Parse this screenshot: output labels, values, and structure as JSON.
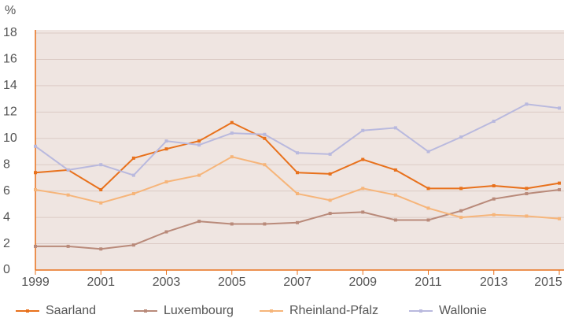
{
  "chart_data": {
    "type": "line",
    "y_label": "%",
    "x": [
      1999,
      2000,
      2001,
      2002,
      2003,
      2004,
      2005,
      2006,
      2007,
      2008,
      2009,
      2010,
      2011,
      2012,
      2013,
      2014,
      2015
    ],
    "xlim": [
      1999,
      2015
    ],
    "xticks": [
      1999,
      2001,
      2003,
      2005,
      2007,
      2009,
      2011,
      2013,
      2015
    ],
    "ylim": [
      0,
      18
    ],
    "yticks": [
      0,
      2,
      4,
      6,
      8,
      10,
      12,
      14,
      16,
      18
    ],
    "grid": true,
    "legend": "bottom",
    "series": [
      {
        "name": "Saarland",
        "color": "#e8711c",
        "values": [
          7.4,
          7.6,
          6.1,
          8.5,
          9.2,
          9.8,
          11.2,
          10.0,
          7.4,
          7.3,
          8.4,
          7.6,
          6.2,
          6.2,
          6.4,
          6.2,
          6.6
        ]
      },
      {
        "name": "Luxembourg",
        "color": "#b98a7a",
        "values": [
          1.8,
          1.8,
          1.6,
          1.9,
          2.9,
          3.7,
          3.5,
          3.5,
          3.6,
          4.3,
          4.4,
          3.8,
          3.8,
          4.5,
          5.4,
          5.8,
          6.1
        ]
      },
      {
        "name": "Rheinland-Pfalz",
        "color": "#f6b57a",
        "values": [
          6.1,
          5.7,
          5.1,
          5.8,
          6.7,
          7.2,
          8.6,
          8.0,
          5.8,
          5.3,
          6.2,
          5.7,
          4.7,
          4.0,
          4.2,
          4.1,
          3.9
        ]
      },
      {
        "name": "Wallonie",
        "color": "#b9b9de",
        "values": [
          9.4,
          7.6,
          8.0,
          7.2,
          9.8,
          9.5,
          10.4,
          10.3,
          8.9,
          8.8,
          10.6,
          10.8,
          9.0,
          10.1,
          11.3,
          12.6,
          12.3
        ]
      }
    ]
  }
}
